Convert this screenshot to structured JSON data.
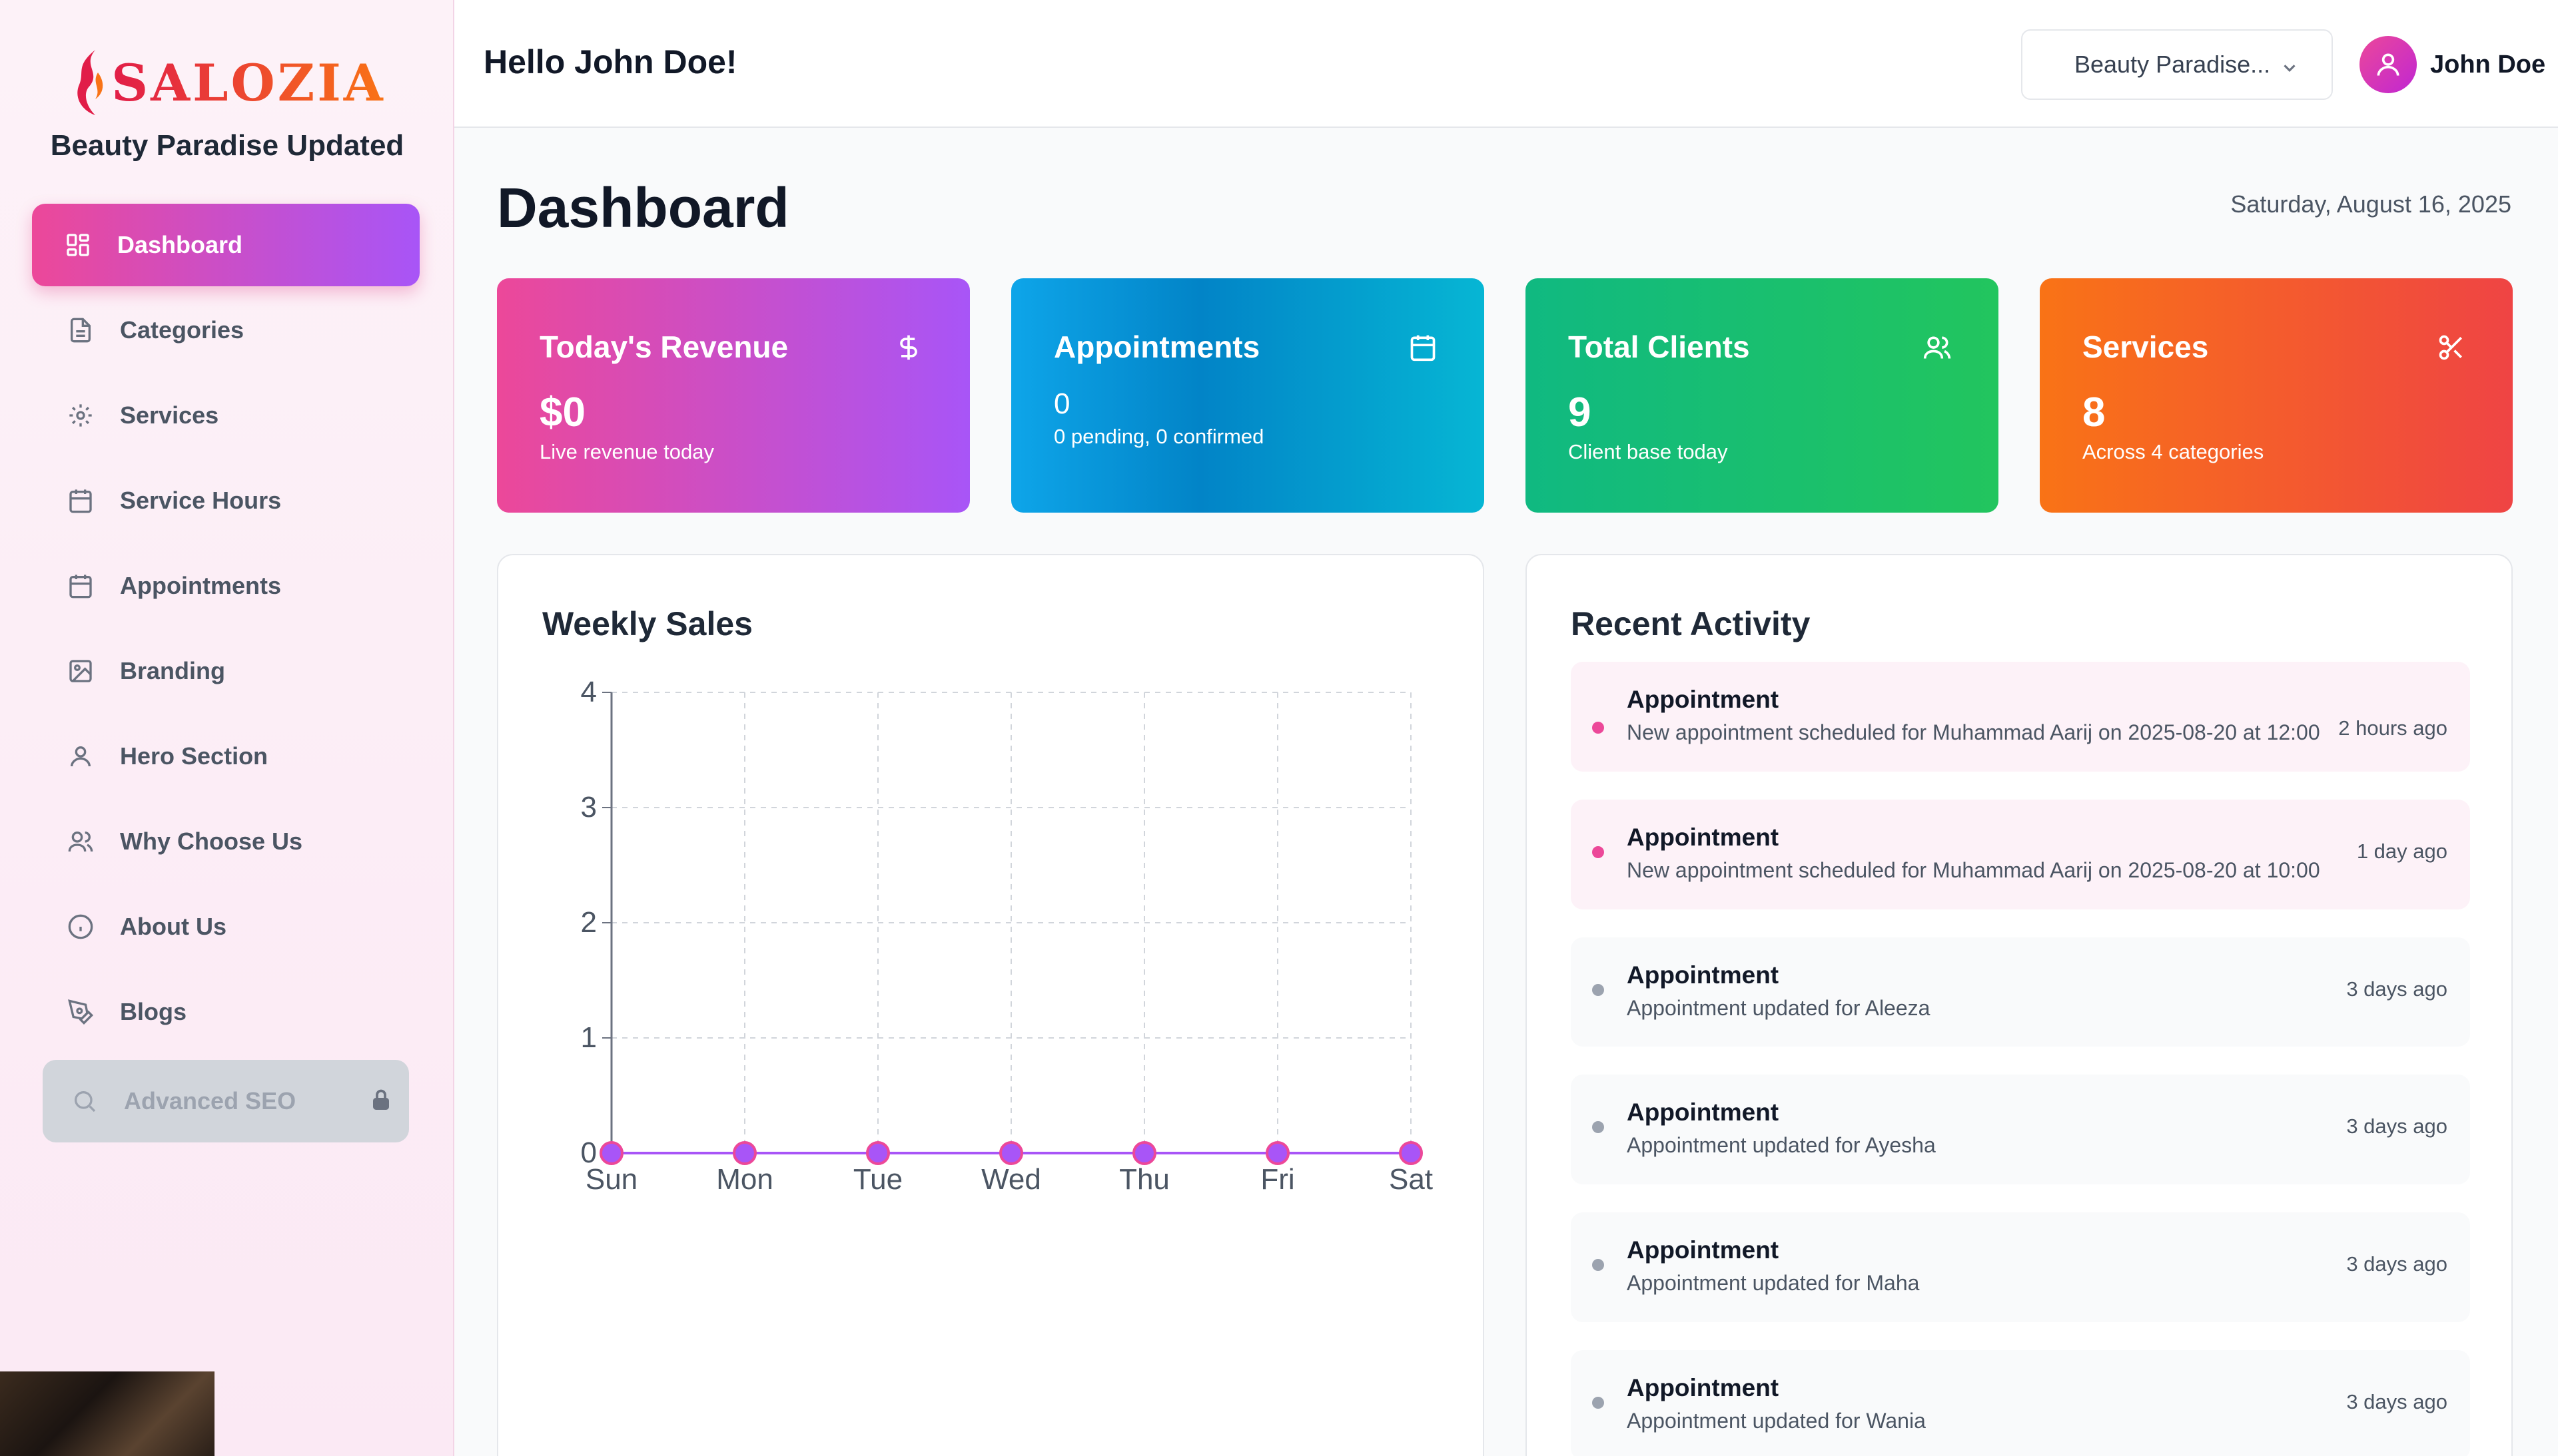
{
  "sidebar": {
    "logo_text": "SALOZIA",
    "business_name": "Beauty Paradise Updated",
    "items": [
      {
        "label": "Dashboard",
        "icon": "dashboard-grid-icon",
        "active": true
      },
      {
        "label": "Categories",
        "icon": "document-icon"
      },
      {
        "label": "Services",
        "icon": "gear-icon"
      },
      {
        "label": "Service Hours",
        "icon": "calendar-icon"
      },
      {
        "label": "Appointments",
        "icon": "calendar-icon"
      },
      {
        "label": "Branding",
        "icon": "image-icon"
      },
      {
        "label": "Hero Section",
        "icon": "user-icon"
      },
      {
        "label": "Why Choose Us",
        "icon": "users-icon"
      },
      {
        "label": "About Us",
        "icon": "info-icon"
      },
      {
        "label": "Blogs",
        "icon": "pen-tool-icon"
      },
      {
        "label": "Advanced SEO",
        "icon": "search-icon",
        "locked": true
      }
    ]
  },
  "header": {
    "greeting": "Hello John Doe!",
    "business_select": "Beauty Paradise...",
    "user_name": "John Doe"
  },
  "main": {
    "title": "Dashboard",
    "date": "Saturday, August 16, 2025"
  },
  "stats": [
    {
      "title": "Today's Revenue",
      "value": "$0",
      "subtitle": "Live revenue today",
      "icon": "dollar-icon",
      "color_from": "#ec4899",
      "color_to": "#a855f7"
    },
    {
      "title": "Appointments",
      "value": "0",
      "subtitle": "0 pending, 0 confirmed",
      "icon": "calendar-icon",
      "color_from": "#0ea5e9",
      "color_to": "#06b6d4"
    },
    {
      "title": "Total Clients",
      "value": "9",
      "subtitle": "Client base today",
      "icon": "users-icon",
      "color_from": "#10b981",
      "color_to": "#22c55e"
    },
    {
      "title": "Services",
      "value": "8",
      "subtitle": "Across 4 categories",
      "icon": "scissors-icon",
      "color_from": "#f97316",
      "color_to": "#ef4444"
    }
  ],
  "weekly_sales": {
    "title": "Weekly Sales"
  },
  "chart_data": {
    "type": "line",
    "title": "Weekly Sales",
    "categories": [
      "Sun",
      "Mon",
      "Tue",
      "Wed",
      "Thu",
      "Fri",
      "Sat"
    ],
    "series": [
      {
        "values": [
          0,
          0,
          0,
          0,
          0,
          0,
          0
        ]
      }
    ],
    "y_ticks": [
      "0",
      "1",
      "2",
      "3",
      "4"
    ],
    "ylim": [
      0,
      4
    ],
    "grid": true,
    "point_color": "#a855f7"
  },
  "recent_activity": {
    "title": "Recent Activity",
    "items": [
      {
        "title": "Appointment",
        "description": "New appointment scheduled for Muhammad Aarij on 2025-08-20 at 12:00",
        "time": "2 hours ago",
        "highlight": true
      },
      {
        "title": "Appointment",
        "description": "New appointment scheduled for Muhammad Aarij on 2025-08-20 at 10:00",
        "time": "1 day ago",
        "highlight": true
      },
      {
        "title": "Appointment",
        "description": "Appointment updated for Aleeza",
        "time": "3 days ago",
        "highlight": false
      },
      {
        "title": "Appointment",
        "description": "Appointment updated for Ayesha",
        "time": "3 days ago",
        "highlight": false
      },
      {
        "title": "Appointment",
        "description": "Appointment updated for Maha",
        "time": "3 days ago",
        "highlight": false
      },
      {
        "title": "Appointment",
        "description": "Appointment updated for Wania",
        "time": "3 days ago",
        "highlight": false
      }
    ]
  }
}
